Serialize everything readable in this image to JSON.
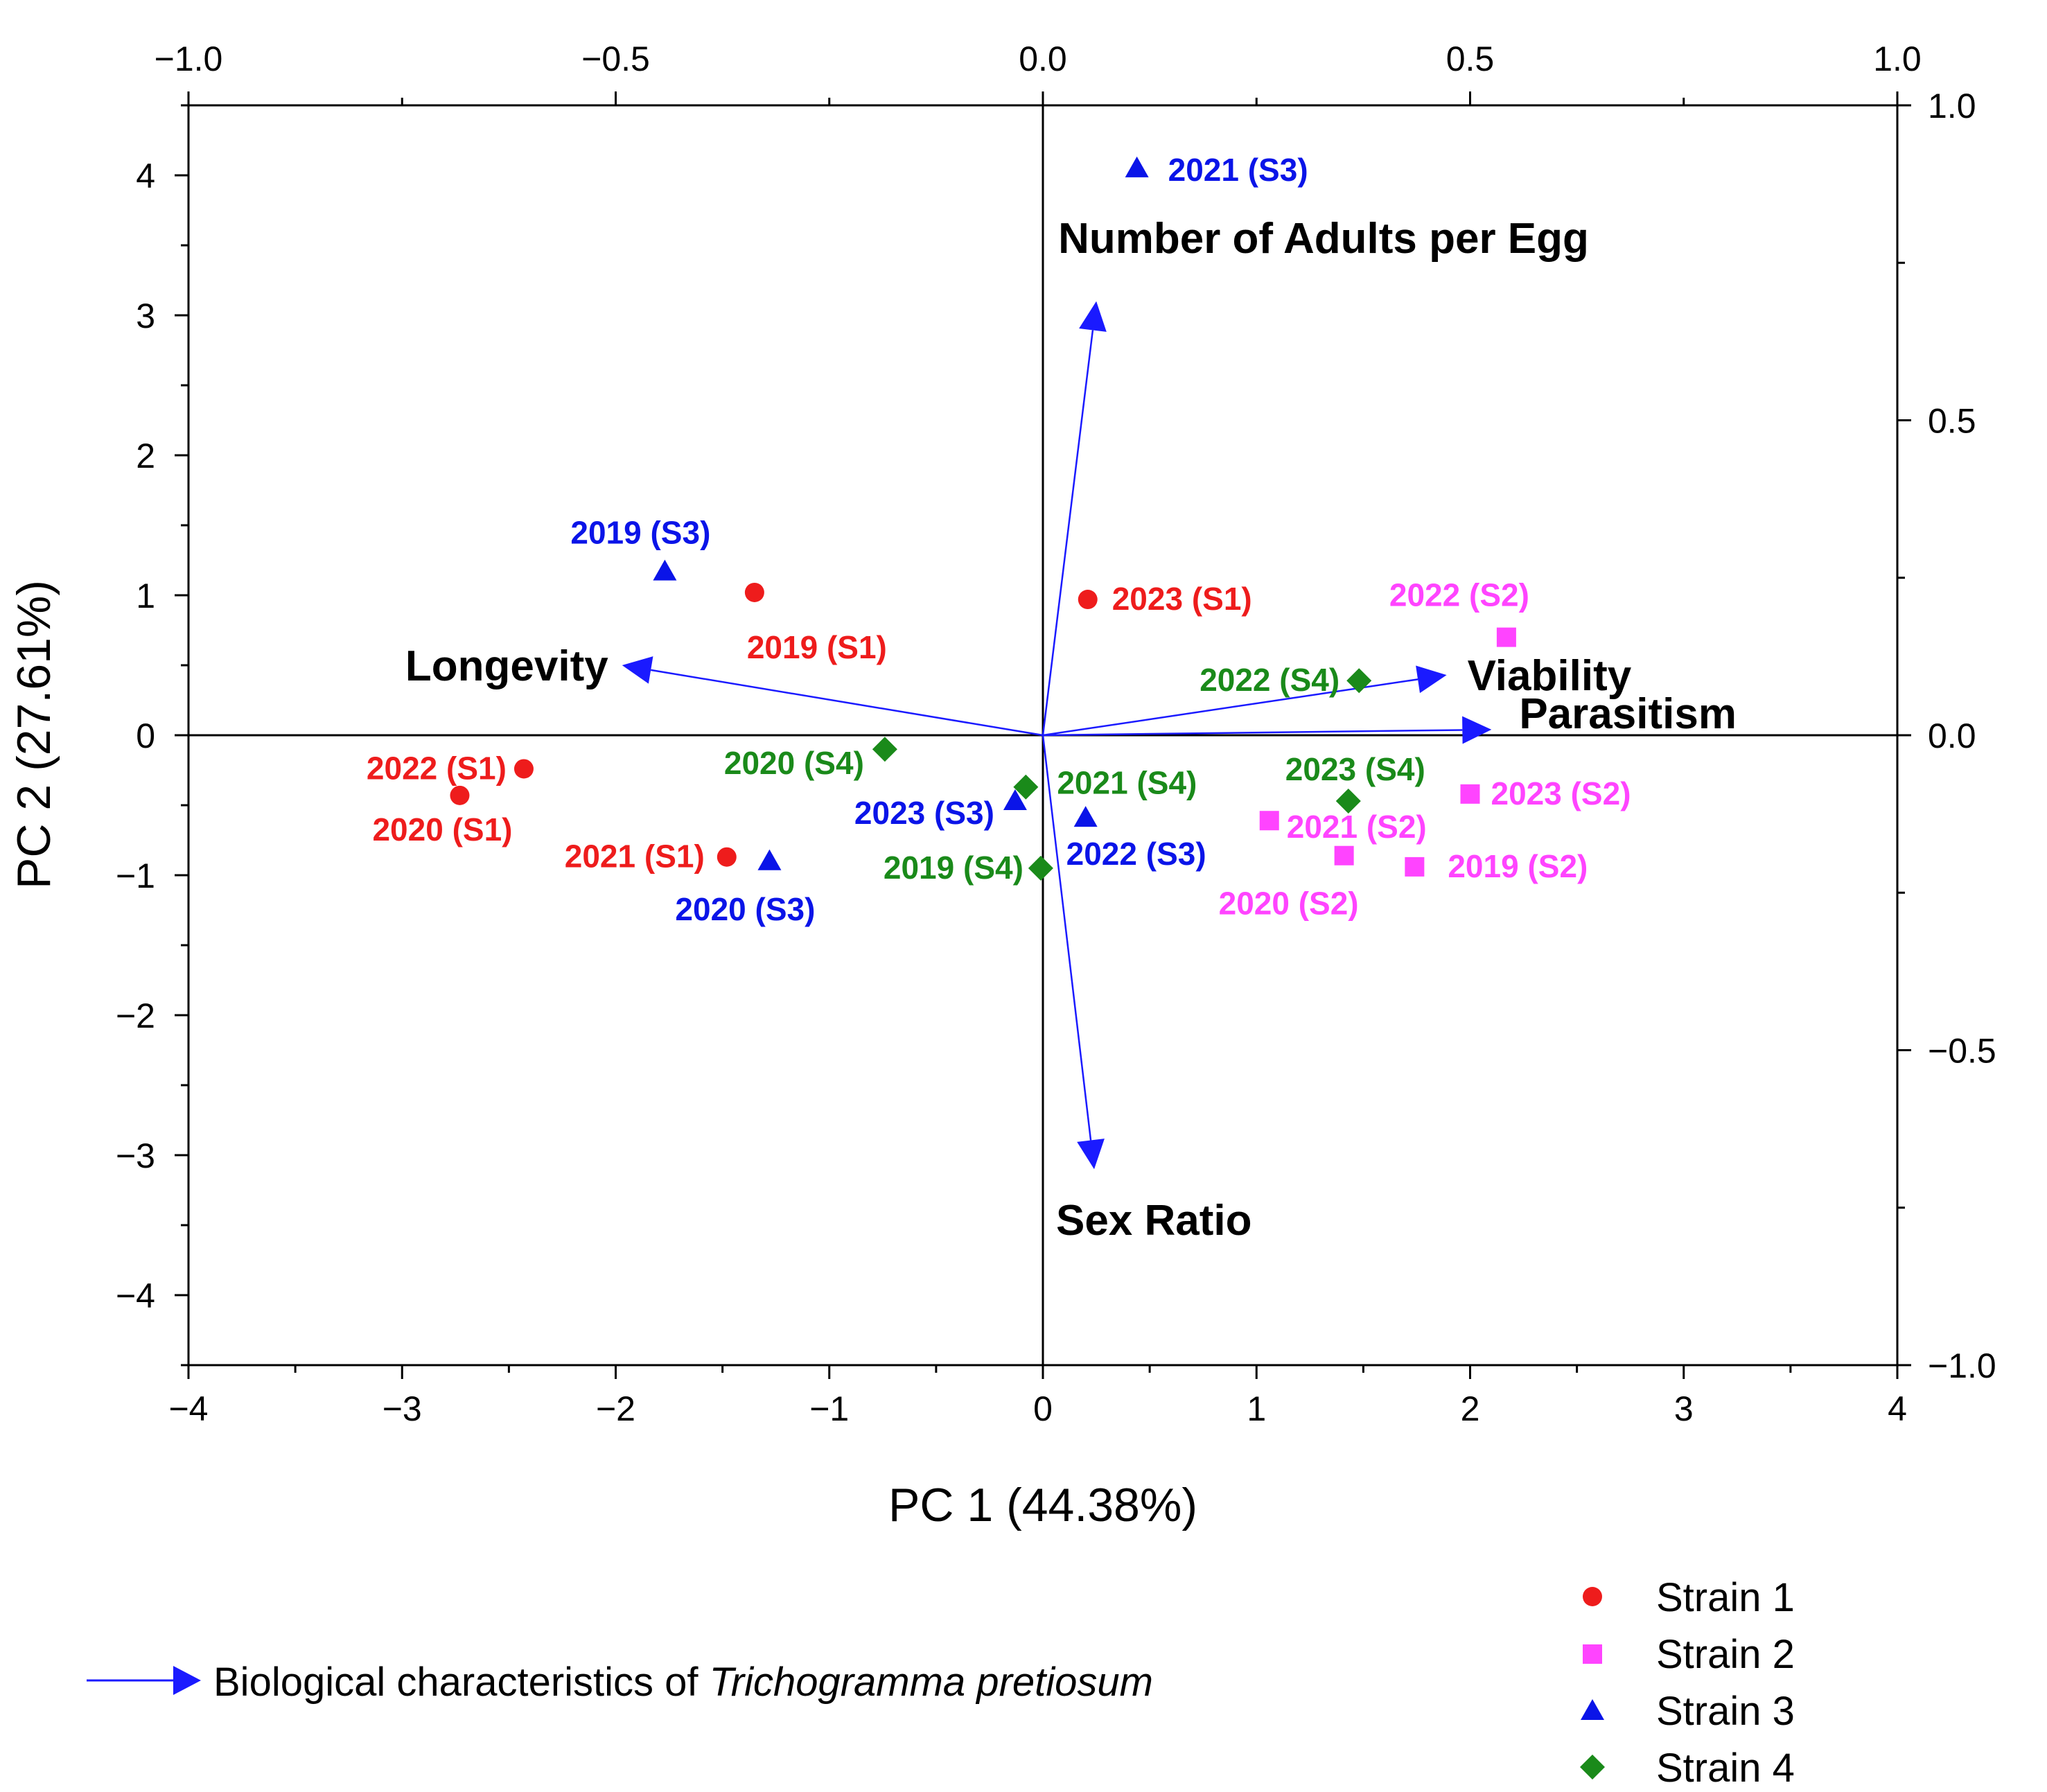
{
  "chart_data": {
    "type": "scatter",
    "subtype": "biplot",
    "xlabel": "PC 1 (44.38%)",
    "ylabel": "PC 2 (27.61%)",
    "xlim": [
      -4,
      4
    ],
    "ylim": [
      -4.5,
      4.5
    ],
    "x_ticks": [
      -4,
      -3,
      -2,
      -1,
      0,
      1,
      2,
      3,
      4
    ],
    "x_tick_labels": [
      "−4",
      "−3",
      "−2",
      "−1",
      "0",
      "1",
      "2",
      "3",
      "4"
    ],
    "y_ticks": [
      -4,
      -3,
      -2,
      -1,
      0,
      1,
      2,
      3,
      4
    ],
    "y_tick_labels": [
      "−4",
      "−3",
      "−2",
      "−1",
      "0",
      "1",
      "2",
      "3",
      "4"
    ],
    "top_xlim": [
      -1.0,
      1.0
    ],
    "top_x_ticks": [
      -1.0,
      -0.5,
      0.0,
      0.5,
      1.0
    ],
    "top_x_tick_labels": [
      "−1.0",
      "−0.5",
      "0.0",
      "0.5",
      "1.0"
    ],
    "right_ylim": [
      -1.0,
      1.0
    ],
    "right_y_ticks": [
      -1.0,
      -0.5,
      0.0,
      0.5,
      1.0
    ],
    "right_y_tick_labels": [
      "−1.0",
      "−0.5",
      "0.0",
      "0.5",
      "1.0"
    ],
    "grid": false,
    "series": [
      {
        "name": "Strain 1",
        "color": "#ee1c1c",
        "marker": "circle",
        "points": [
          {
            "label": "2019 (S1)",
            "x": -1.35,
            "y": 1.02
          },
          {
            "label": "2020 (S1)",
            "x": -2.73,
            "y": -0.43
          },
          {
            "label": "2021 (S1)",
            "x": -1.48,
            "y": -0.87
          },
          {
            "label": "2022 (S1)",
            "x": -2.43,
            "y": -0.24
          },
          {
            "label": "2023 (S1)",
            "x": 0.21,
            "y": 0.97
          }
        ]
      },
      {
        "name": "Strain 2",
        "color": "#ff44ff",
        "marker": "square",
        "points": [
          {
            "label": "2019 (S2)",
            "x": 1.74,
            "y": -0.94
          },
          {
            "label": "2020 (S2)",
            "x": 1.41,
            "y": -0.86
          },
          {
            "label": "2021 (S2)",
            "x": 1.06,
            "y": -0.61
          },
          {
            "label": "2022 (S2)",
            "x": 2.17,
            "y": 0.7
          },
          {
            "label": "2023 (S2)",
            "x": 2.0,
            "y": -0.42
          }
        ]
      },
      {
        "name": "Strain 3",
        "color": "#0a14e8",
        "marker": "triangle",
        "points": [
          {
            "label": "2019 (S3)",
            "x": -1.77,
            "y": 1.17
          },
          {
            "label": "2020 (S3)",
            "x": -1.28,
            "y": -0.9
          },
          {
            "label": "2021 (S3)",
            "x": 0.44,
            "y": 4.05
          },
          {
            "label": "2022 (S3)",
            "x": 0.2,
            "y": -0.59
          },
          {
            "label": "2023 (S3)",
            "x": -0.13,
            "y": -0.47
          }
        ]
      },
      {
        "name": "Strain 4",
        "color": "#1a8a1a",
        "marker": "diamond",
        "points": [
          {
            "label": "2019 (S4)",
            "x": -0.01,
            "y": -0.95
          },
          {
            "label": "2020 (S4)",
            "x": -0.74,
            "y": -0.1
          },
          {
            "label": "2021 (S4)",
            "x": -0.08,
            "y": -0.37
          },
          {
            "label": "2022 (S4)",
            "x": 1.48,
            "y": 0.39
          },
          {
            "label": "2023 (S4)",
            "x": 1.43,
            "y": -0.47
          }
        ]
      }
    ],
    "vectors": [
      {
        "name": "Number of Adults per Egg",
        "x": 0.25,
        "y": 3.1
      },
      {
        "name": "Longevity",
        "x": -1.97,
        "y": 0.5
      },
      {
        "name": "Viability",
        "x": 1.89,
        "y": 0.43
      },
      {
        "name": "Parasitism",
        "x": 2.1,
        "y": 0.04
      },
      {
        "name": "Sex Ratio",
        "x": 0.24,
        "y": -3.1
      }
    ],
    "vector_color": "#1a1aff",
    "legend": {
      "position": "bottom-right",
      "vector_caption_prefix": "Biological characteristics of",
      "vector_caption_species": "Trichogramma pretiosum"
    }
  }
}
